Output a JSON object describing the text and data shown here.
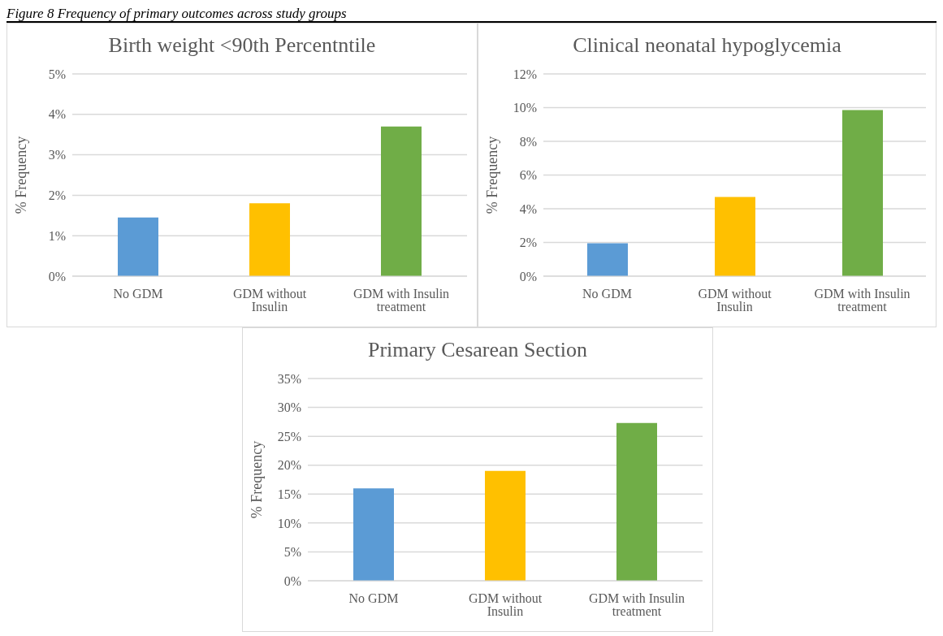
{
  "chart_data": [
    {
      "type": "bar",
      "title": "Birth weight <90th Percentntile",
      "ylabel": "% Frequency",
      "annotations": [
        "Figure 8 Frequency of primary outcomes across study groups"
      ],
      "categories": [
        "No GDM",
        "GDM without Insulin",
        "GDM with Insulin treatment"
      ],
      "values": [
        1.45,
        1.8,
        3.7
      ],
      "colors": [
        "#5b9bd5",
        "#ffc000",
        "#70ad47"
      ],
      "ylim": [
        0,
        5
      ],
      "yticks": [
        {
          "value": 0,
          "label": "0%"
        },
        {
          "value": 1,
          "label": "1%"
        },
        {
          "value": 2,
          "label": "2%"
        },
        {
          "value": 3,
          "label": "3%"
        },
        {
          "value": 4,
          "label": "4%"
        },
        {
          "value": 5,
          "label": "5%"
        }
      ],
      "grid": "y"
    },
    {
      "type": "bar",
      "title": "Clinical neonatal hypoglycemia",
      "ylabel": "% Frequency",
      "categories": [
        "No GDM",
        "GDM without Insulin",
        "GDM with Insulin treatment"
      ],
      "values": [
        1.95,
        4.7,
        9.85
      ],
      "colors": [
        "#5b9bd5",
        "#ffc000",
        "#70ad47"
      ],
      "ylim": [
        0,
        12
      ],
      "yticks": [
        {
          "value": 0,
          "label": "0%"
        },
        {
          "value": 2,
          "label": "2%"
        },
        {
          "value": 4,
          "label": "4%"
        },
        {
          "value": 6,
          "label": "6%"
        },
        {
          "value": 8,
          "label": "8%"
        },
        {
          "value": 10,
          "label": "10%"
        },
        {
          "value": 12,
          "label": "12%"
        }
      ],
      "grid": "y"
    },
    {
      "type": "bar",
      "title": "Primary Cesarean Section",
      "ylabel": "% Frequency",
      "categories": [
        "No GDM",
        "GDM without Insulin",
        "GDM with Insulin treatment"
      ],
      "values": [
        16,
        19,
        27.3
      ],
      "colors": [
        "#5b9bd5",
        "#ffc000",
        "#70ad47"
      ],
      "ylim": [
        0,
        35
      ],
      "yticks": [
        {
          "value": 0,
          "label": "0%"
        },
        {
          "value": 5,
          "label": "5%"
        },
        {
          "value": 10,
          "label": "10%"
        },
        {
          "value": 15,
          "label": "15%"
        },
        {
          "value": 20,
          "label": "20%"
        },
        {
          "value": 25,
          "label": "25%"
        },
        {
          "value": 30,
          "label": "30%"
        },
        {
          "value": 35,
          "label": "35%"
        }
      ],
      "grid": "y"
    }
  ]
}
